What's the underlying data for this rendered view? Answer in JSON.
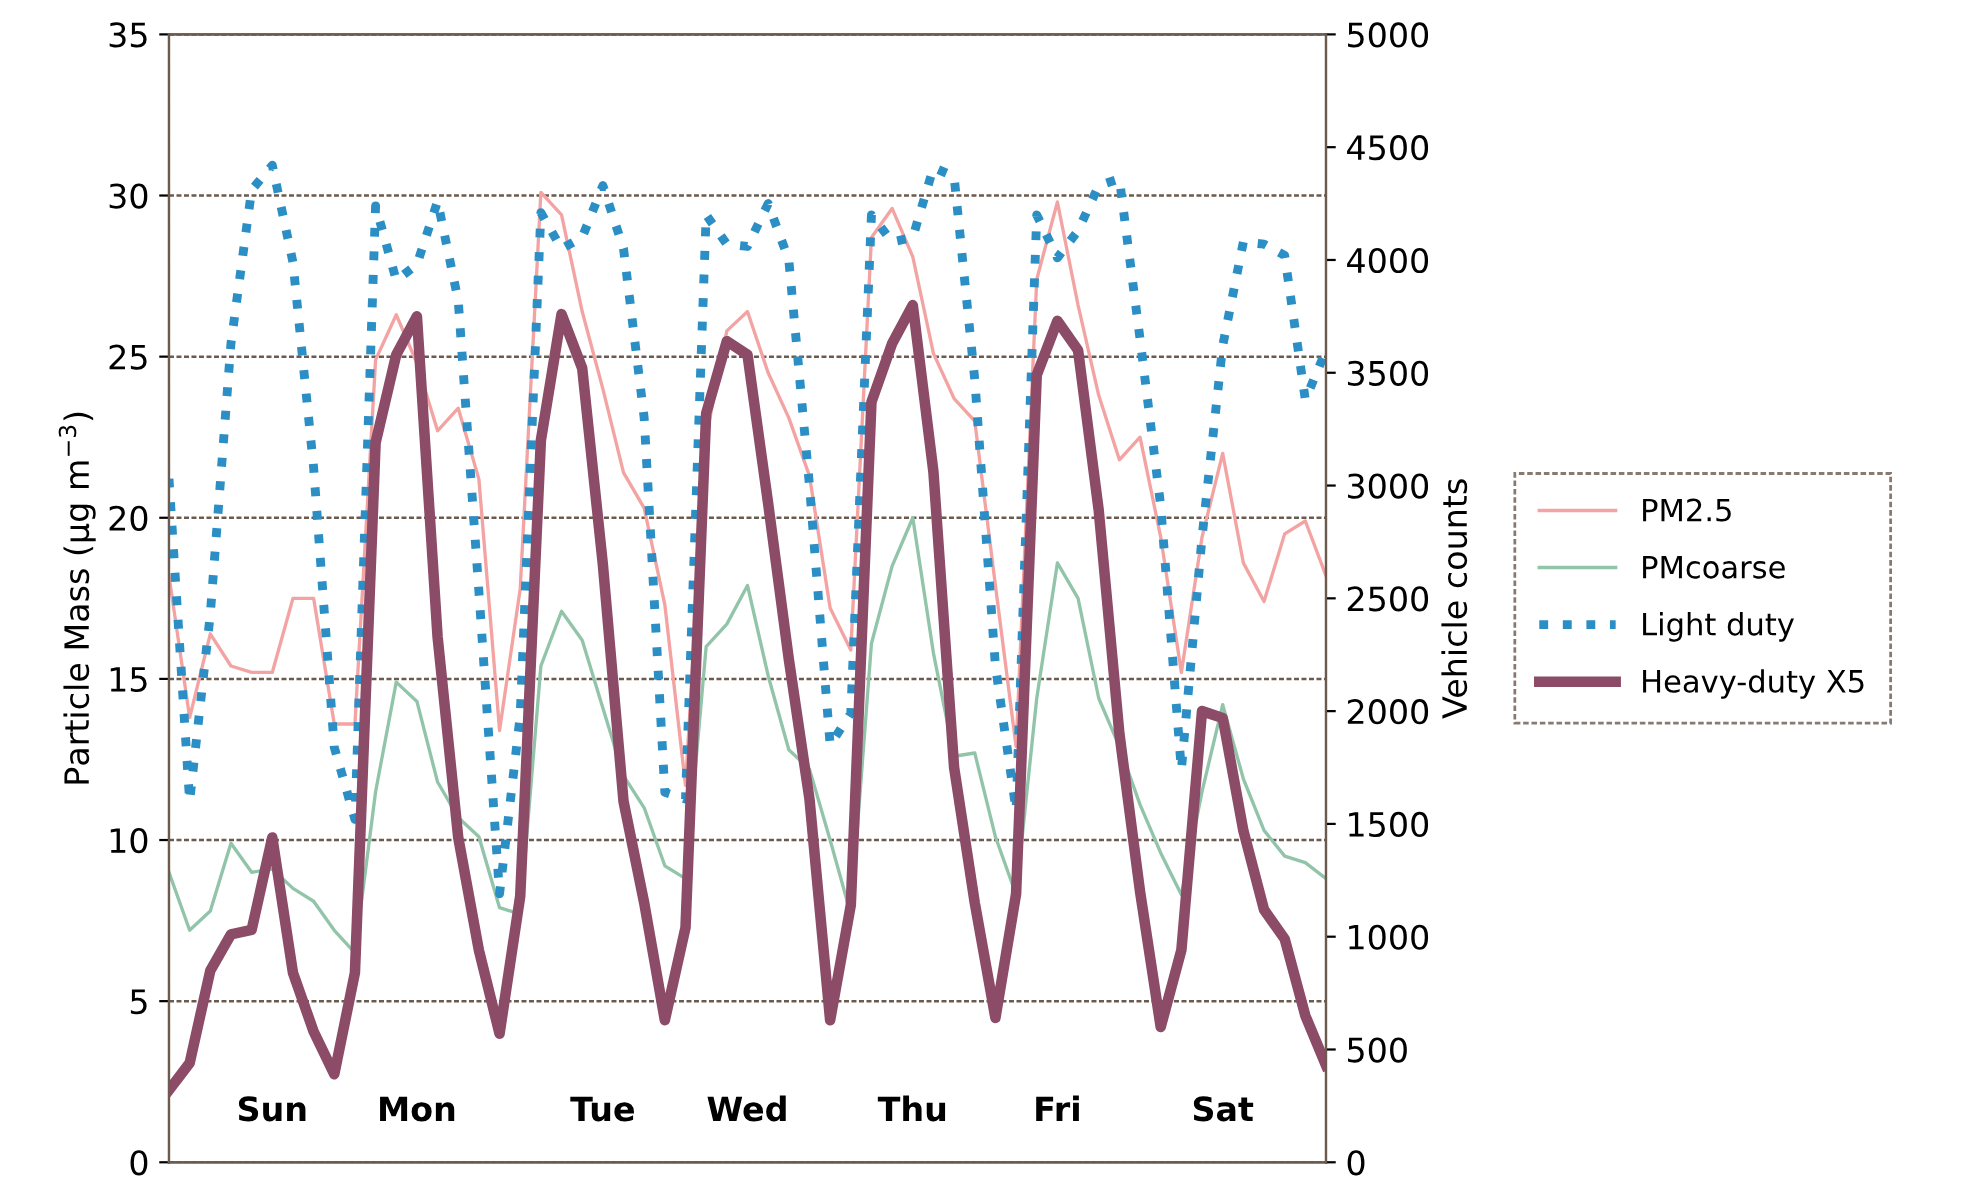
{
  "chart_data": {
    "type": "line",
    "ylabel": "Particle Mass (μg m$^{−3}$)",
    "y2label": "Vehicle counts",
    "categories": [
      null,
      null,
      null,
      null,
      null,
      "Sun",
      null,
      null,
      null,
      null,
      null,
      null,
      "Mon",
      null,
      null,
      null,
      null,
      null,
      null,
      null,
      null,
      "Tue",
      null,
      null,
      null,
      null,
      null,
      null,
      "Wed",
      null,
      null,
      null,
      null,
      null,
      null,
      null,
      "Thu",
      null,
      null,
      null,
      null,
      null,
      null,
      "Fri",
      null,
      null,
      null,
      null,
      null,
      null,
      null,
      "Sat",
      null,
      null,
      null,
      null,
      null
    ],
    "ylim": [
      0,
      35
    ],
    "yticks": [
      0,
      5,
      10,
      15,
      20,
      25,
      30,
      35
    ],
    "y2lim": [
      0,
      5000
    ],
    "y2ticks": [
      0,
      500,
      1000,
      1500,
      2000,
      2500,
      3000,
      3500,
      4000,
      4500,
      5000
    ],
    "grid": "y",
    "legend": "right",
    "marker": "none",
    "series": [
      {
        "name": "PM2.5",
        "color": "#f4a3a3",
        "line_style": "solid",
        "values": [
          18.2,
          13.8,
          16.4,
          15.4,
          15.2,
          15.2,
          17.5,
          17.5,
          13.6,
          13.6,
          24.9,
          26.3,
          24.8,
          22.7,
          23.4,
          21.2,
          13.4,
          17.8,
          30.1,
          29.4,
          26.4,
          24.0,
          21.4,
          20.3,
          17.3,
          11.7,
          22.5,
          25.8,
          26.4,
          24.5,
          23.1,
          21.3,
          17.2,
          15.9,
          28.7,
          29.6,
          28.1,
          25.1,
          23.7,
          23.0,
          17.9,
          12.9,
          27.4,
          29.8,
          26.6,
          23.8,
          21.8,
          22.5,
          19.4,
          15.2,
          19.4,
          22.0,
          18.6,
          17.4,
          19.5,
          19.9,
          18.2
        ]
      },
      {
        "name": "PMcoarse",
        "color": "#92c4aa",
        "line_style": "solid",
        "values": [
          9.0,
          7.2,
          7.8,
          9.9,
          9.0,
          9.1,
          8.5,
          8.1,
          7.2,
          6.5,
          11.5,
          14.9,
          14.3,
          11.8,
          10.7,
          10.1,
          7.9,
          7.7,
          15.4,
          17.1,
          16.2,
          14.1,
          12.0,
          11.0,
          9.2,
          8.8,
          16.0,
          16.7,
          17.9,
          15.1,
          12.8,
          12.2,
          10.0,
          7.7,
          16.1,
          18.5,
          20.0,
          15.8,
          12.6,
          12.7,
          10.1,
          8.3,
          14.4,
          18.6,
          17.5,
          14.4,
          12.9,
          11.1,
          9.6,
          8.3,
          11.5,
          14.2,
          11.9,
          10.3,
          9.5,
          9.3,
          8.8
        ]
      },
      {
        "name": "Light duty",
        "color": "#2b8fc6",
        "line_style": "dotted",
        "axis": "y2",
        "values": [
          3030,
          1600,
          2430,
          3630,
          4310,
          4420,
          3990,
          3080,
          1840,
          1520,
          4240,
          3910,
          3980,
          4260,
          3820,
          2530,
          1190,
          1980,
          4210,
          4050,
          4100,
          4330,
          4050,
          3300,
          1640,
          1610,
          4200,
          4070,
          4060,
          4250,
          4000,
          3000,
          1850,
          1990,
          4200,
          4080,
          4100,
          4410,
          4370,
          3470,
          2200,
          1560,
          4200,
          4010,
          4130,
          4330,
          4360,
          3650,
          2910,
          1740,
          2770,
          3620,
          4080,
          4070,
          4020,
          3380,
          3600
        ]
      },
      {
        "name": "Heavy-duty X5",
        "color": "#8c4b66",
        "line_style": "solid",
        "axis": "y2",
        "values": [
          320,
          440,
          850,
          1010,
          1030,
          1440,
          840,
          580,
          390,
          840,
          3190,
          3580,
          3750,
          2330,
          1440,
          940,
          570,
          1180,
          3200,
          3760,
          3520,
          2650,
          1600,
          1150,
          630,
          1040,
          3320,
          3640,
          3580,
          2920,
          2230,
          1610,
          630,
          1140,
          3370,
          3630,
          3800,
          3060,
          1750,
          1150,
          640,
          1190,
          3490,
          3730,
          3600,
          2890,
          1900,
          1200,
          600,
          940,
          2000,
          1970,
          1470,
          1120,
          990,
          650,
          430
        ]
      }
    ]
  }
}
